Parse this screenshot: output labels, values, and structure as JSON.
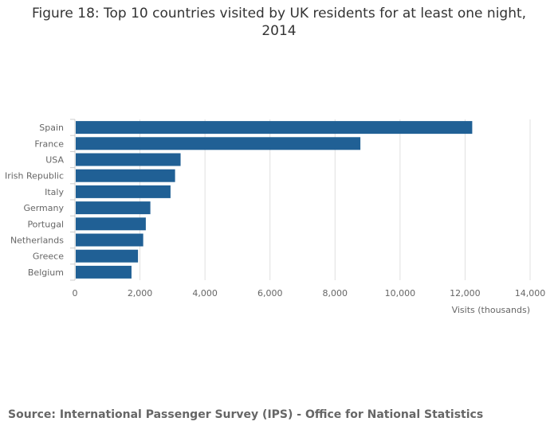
{
  "chart_data": {
    "type": "bar",
    "orientation": "horizontal",
    "title": "Figure 18: Top 10 countries visited by UK residents for at least one night,\n2014",
    "xlabel": "Visits (thousands)",
    "ylabel": "",
    "categories": [
      "Spain",
      "France",
      "USA",
      "Irish Republic",
      "Italy",
      "Germany",
      "Portugal",
      "Netherlands",
      "Greece",
      "Belgium"
    ],
    "values": [
      12220,
      8780,
      3250,
      3080,
      2940,
      2320,
      2180,
      2100,
      1940,
      1740
    ],
    "xlim": [
      0,
      14000
    ],
    "xticks": [
      0,
      2000,
      4000,
      6000,
      8000,
      10000,
      12000,
      14000
    ],
    "xtick_labels": [
      "0",
      "2,000",
      "4,000",
      "6,000",
      "8,000",
      "10,000",
      "12,000",
      "14,000"
    ],
    "grid": true,
    "bar_color": "#206095",
    "grid_color": "#e0e0e0",
    "label_color": "#666666"
  },
  "source": "Source: International Passenger Survey (IPS) - Office for National Statistics"
}
